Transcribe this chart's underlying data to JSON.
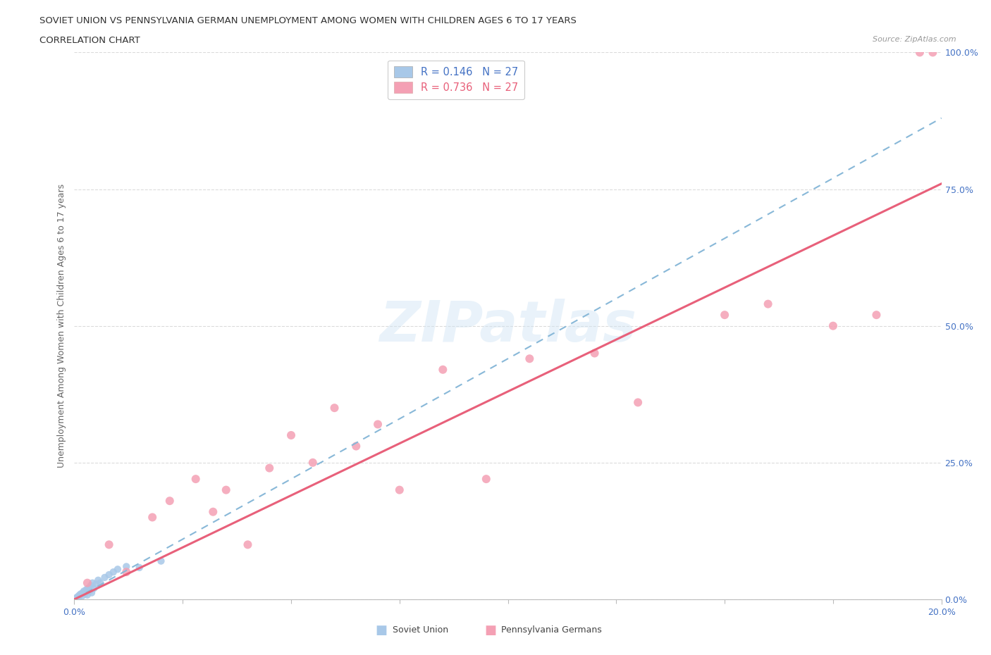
{
  "title_line1": "SOVIET UNION VS PENNSYLVANIA GERMAN UNEMPLOYMENT AMONG WOMEN WITH CHILDREN AGES 6 TO 17 YEARS",
  "title_line2": "CORRELATION CHART",
  "source": "Source: ZipAtlas.com",
  "ylabel": "Unemployment Among Women with Children Ages 6 to 17 years",
  "legend_soviet": "R = 0.146   N = 27",
  "legend_pa": "R = 0.736   N = 27",
  "soviet_color": "#a8c8e8",
  "pa_color": "#f4a0b4",
  "soviet_line_color": "#88b8d8",
  "pa_line_color": "#e8607a",
  "watermark": "ZIPatlas",
  "soviet_scatter_x": [
    0.05,
    0.08,
    0.1,
    0.12,
    0.15,
    0.18,
    0.2,
    0.22,
    0.25,
    0.28,
    0.3,
    0.32,
    0.35,
    0.38,
    0.4,
    0.42,
    0.45,
    0.5,
    0.55,
    0.6,
    0.7,
    0.8,
    0.9,
    1.0,
    1.2,
    1.5,
    2.0
  ],
  "soviet_scatter_y": [
    0.3,
    0.5,
    0.4,
    0.8,
    1.0,
    0.6,
    1.2,
    1.5,
    1.0,
    1.8,
    0.8,
    2.0,
    1.5,
    2.5,
    1.2,
    3.0,
    2.0,
    2.8,
    3.5,
    3.0,
    4.0,
    4.5,
    5.0,
    5.5,
    6.0,
    5.8,
    7.0
  ],
  "pa_scatter_x": [
    0.3,
    0.8,
    1.2,
    1.8,
    2.2,
    2.8,
    3.2,
    3.5,
    4.0,
    4.5,
    5.0,
    5.5,
    6.0,
    6.5,
    7.0,
    7.5,
    8.5,
    9.5,
    10.5,
    12.0,
    13.0,
    15.0,
    16.0,
    17.5,
    18.5,
    19.5,
    19.8
  ],
  "pa_scatter_y": [
    3.0,
    10.0,
    5.0,
    15.0,
    18.0,
    22.0,
    16.0,
    20.0,
    10.0,
    24.0,
    30.0,
    25.0,
    35.0,
    28.0,
    32.0,
    20.0,
    42.0,
    22.0,
    44.0,
    45.0,
    36.0,
    52.0,
    54.0,
    50.0,
    52.0,
    100.0,
    100.0
  ],
  "soviet_line": [
    0.0,
    20.0,
    0.0,
    88.0
  ],
  "pa_line": [
    0.0,
    20.0,
    0.0,
    76.0
  ],
  "xlim": [
    0,
    20
  ],
  "ylim": [
    0,
    100
  ],
  "y_ticks_vals": [
    0,
    25,
    50,
    75,
    100
  ],
  "y_tick_labels": [
    "0.0%",
    "25.0%",
    "50.0%",
    "75.0%",
    "100.0%"
  ],
  "x_tick_labels": [
    "0.0%",
    "20.0%"
  ],
  "x_minor_ticks": [
    2.5,
    5.0,
    7.5,
    10.0,
    12.5,
    15.0,
    17.5
  ]
}
